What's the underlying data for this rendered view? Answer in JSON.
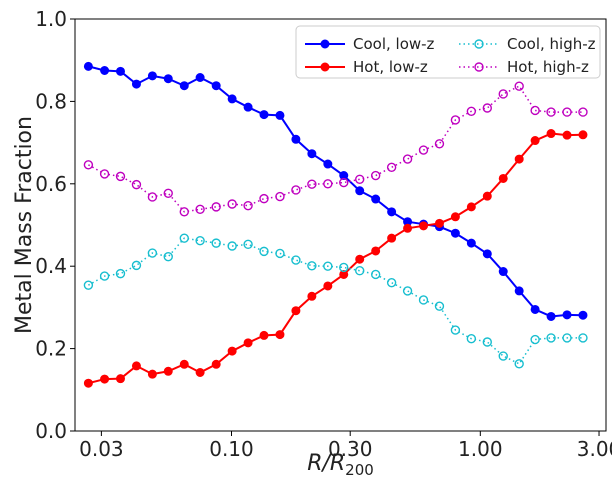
{
  "chart_data": {
    "type": "line",
    "xlabel": "R/R200",
    "ylabel": "Metal Mass Fraction",
    "xscale": "log",
    "xlim": [
      0.0235,
      3.2
    ],
    "ylim": [
      0.0,
      1.0
    ],
    "xticks": [
      0.03,
      0.1,
      0.3,
      1.0,
      3.0
    ],
    "xtick_labels": [
      "0.03",
      "0.10",
      "0.30",
      "1.00",
      "3.00"
    ],
    "yticks": [
      0.0,
      0.2,
      0.4,
      0.6,
      0.8,
      1.0
    ],
    "ytick_labels": [
      "0.0",
      "0.2",
      "0.4",
      "0.6",
      "0.8",
      "1.0"
    ],
    "grid": false,
    "legend_placement": "top-right",
    "legend_columns": 2,
    "x": [
      0.0266,
      0.0309,
      0.0358,
      0.0415,
      0.0481,
      0.0557,
      0.0646,
      0.0748,
      0.0868,
      0.1006,
      0.1166,
      0.1351,
      0.1566,
      0.1815,
      0.2104,
      0.2439,
      0.2826,
      0.3276,
      0.3797,
      0.4401,
      0.5101,
      0.5912,
      0.6852,
      0.7941,
      0.9204,
      1.0668,
      1.2364,
      1.433,
      1.6609,
      1.925,
      2.2311,
      2.5858
    ],
    "series": [
      {
        "name": "Cool, low-z",
        "color": "#0000ff",
        "linestyle": "solid",
        "marker": "filled-circle",
        "values": [
          0.885,
          0.875,
          0.873,
          0.842,
          0.862,
          0.855,
          0.838,
          0.858,
          0.838,
          0.806,
          0.786,
          0.768,
          0.766,
          0.708,
          0.673,
          0.648,
          0.62,
          0.583,
          0.563,
          0.532,
          0.508,
          0.502,
          0.496,
          0.48,
          0.456,
          0.43,
          0.387,
          0.34,
          0.295,
          0.278,
          0.282,
          0.281
        ]
      },
      {
        "name": "Hot, low-z",
        "color": "#ff0000",
        "linestyle": "solid",
        "marker": "filled-circle",
        "values": [
          0.116,
          0.126,
          0.127,
          0.158,
          0.138,
          0.145,
          0.162,
          0.142,
          0.162,
          0.194,
          0.214,
          0.232,
          0.234,
          0.292,
          0.327,
          0.352,
          0.38,
          0.417,
          0.437,
          0.468,
          0.492,
          0.498,
          0.504,
          0.52,
          0.544,
          0.57,
          0.613,
          0.66,
          0.705,
          0.722,
          0.718,
          0.719
        ]
      },
      {
        "name": "Cool, high-z",
        "color": "#17becf",
        "linestyle": "dotted",
        "marker": "open-circle",
        "values": [
          0.354,
          0.376,
          0.382,
          0.402,
          0.432,
          0.423,
          0.468,
          0.462,
          0.456,
          0.449,
          0.453,
          0.436,
          0.431,
          0.415,
          0.401,
          0.4,
          0.397,
          0.389,
          0.38,
          0.36,
          0.34,
          0.318,
          0.303,
          0.245,
          0.224,
          0.216,
          0.182,
          0.163,
          0.222,
          0.226,
          0.226,
          0.226
        ]
      },
      {
        "name": "Hot, high-z",
        "color": "#bf00bf",
        "linestyle": "dotted",
        "marker": "open-circle",
        "values": [
          0.646,
          0.624,
          0.618,
          0.598,
          0.568,
          0.577,
          0.532,
          0.538,
          0.544,
          0.551,
          0.547,
          0.564,
          0.569,
          0.585,
          0.599,
          0.6,
          0.603,
          0.611,
          0.62,
          0.64,
          0.66,
          0.682,
          0.697,
          0.755,
          0.776,
          0.784,
          0.818,
          0.837,
          0.778,
          0.774,
          0.774,
          0.774
        ]
      }
    ]
  }
}
